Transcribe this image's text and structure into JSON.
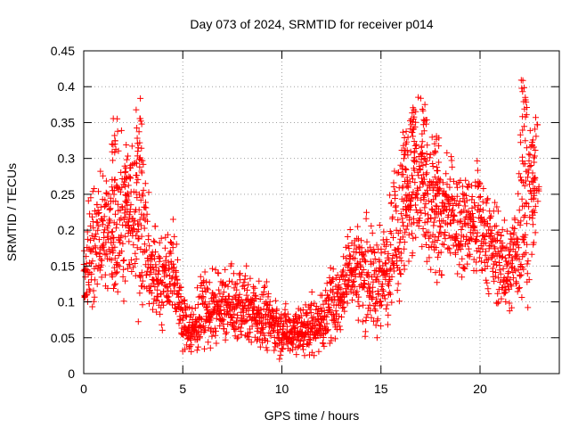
{
  "chart_data": {
    "type": "scatter",
    "title": "Day 073 of 2024, SRMTID for receiver p014",
    "xlabel": "GPS time / hours",
    "ylabel": "SRMTID / TECUs",
    "xlim": [
      0,
      24
    ],
    "ylim": [
      0,
      0.45
    ],
    "grid": true,
    "marker": "+",
    "color": "#ff0000",
    "x_ticks": [
      0,
      5,
      10,
      15,
      20
    ],
    "x_tick_labels": [
      "0",
      "5",
      "10",
      "15",
      "20"
    ],
    "y_ticks": [
      0,
      0.05,
      0.1,
      0.15,
      0.2,
      0.25,
      0.3,
      0.35,
      0.4,
      0.45
    ],
    "y_tick_labels": [
      "0",
      "0.05",
      "0.1",
      "0.15",
      "0.2",
      "0.25",
      "0.3",
      "0.35",
      "0.4",
      "0.45"
    ],
    "series": [
      {
        "name": "SRMTID",
        "profile": {
          "x": [
            0.0,
            0.5,
            1.0,
            1.5,
            2.0,
            2.5,
            3.0,
            3.5,
            4.0,
            4.5,
            5.0,
            5.5,
            6.0,
            7.0,
            8.0,
            9.0,
            10.0,
            11.0,
            12.0,
            12.5,
            13.0,
            13.5,
            14.0,
            14.5,
            15.0,
            15.5,
            16.0,
            16.5,
            17.0,
            17.5,
            18.0,
            18.5,
            19.0,
            19.5,
            20.0,
            20.5,
            21.0,
            21.5,
            22.0,
            22.5,
            22.8
          ],
          "center": [
            0.14,
            0.17,
            0.2,
            0.19,
            0.22,
            0.21,
            0.2,
            0.13,
            0.12,
            0.15,
            0.07,
            0.06,
            0.08,
            0.09,
            0.09,
            0.08,
            0.06,
            0.06,
            0.07,
            0.09,
            0.11,
            0.15,
            0.14,
            0.13,
            0.12,
            0.17,
            0.2,
            0.24,
            0.25,
            0.22,
            0.21,
            0.22,
            0.2,
            0.21,
            0.2,
            0.18,
            0.15,
            0.14,
            0.2,
            0.23,
            0.24
          ],
          "spread": [
            0.05,
            0.06,
            0.07,
            0.08,
            0.08,
            0.09,
            0.09,
            0.05,
            0.05,
            0.05,
            0.03,
            0.03,
            0.04,
            0.04,
            0.04,
            0.035,
            0.03,
            0.03,
            0.035,
            0.04,
            0.045,
            0.05,
            0.06,
            0.06,
            0.06,
            0.07,
            0.09,
            0.09,
            0.09,
            0.08,
            0.07,
            0.06,
            0.06,
            0.06,
            0.06,
            0.05,
            0.05,
            0.05,
            0.09,
            0.09,
            0.07
          ],
          "peaks": [
            {
              "x": 1.6,
              "y": 0.36
            },
            {
              "x": 2.2,
              "y": 0.31
            },
            {
              "x": 2.8,
              "y": 0.39
            },
            {
              "x": 16.2,
              "y": 0.34
            },
            {
              "x": 16.6,
              "y": 0.38
            },
            {
              "x": 17.2,
              "y": 0.38
            },
            {
              "x": 17.8,
              "y": 0.33
            },
            {
              "x": 22.2,
              "y": 0.41
            },
            {
              "x": 22.8,
              "y": 0.36
            }
          ]
        }
      }
    ]
  }
}
